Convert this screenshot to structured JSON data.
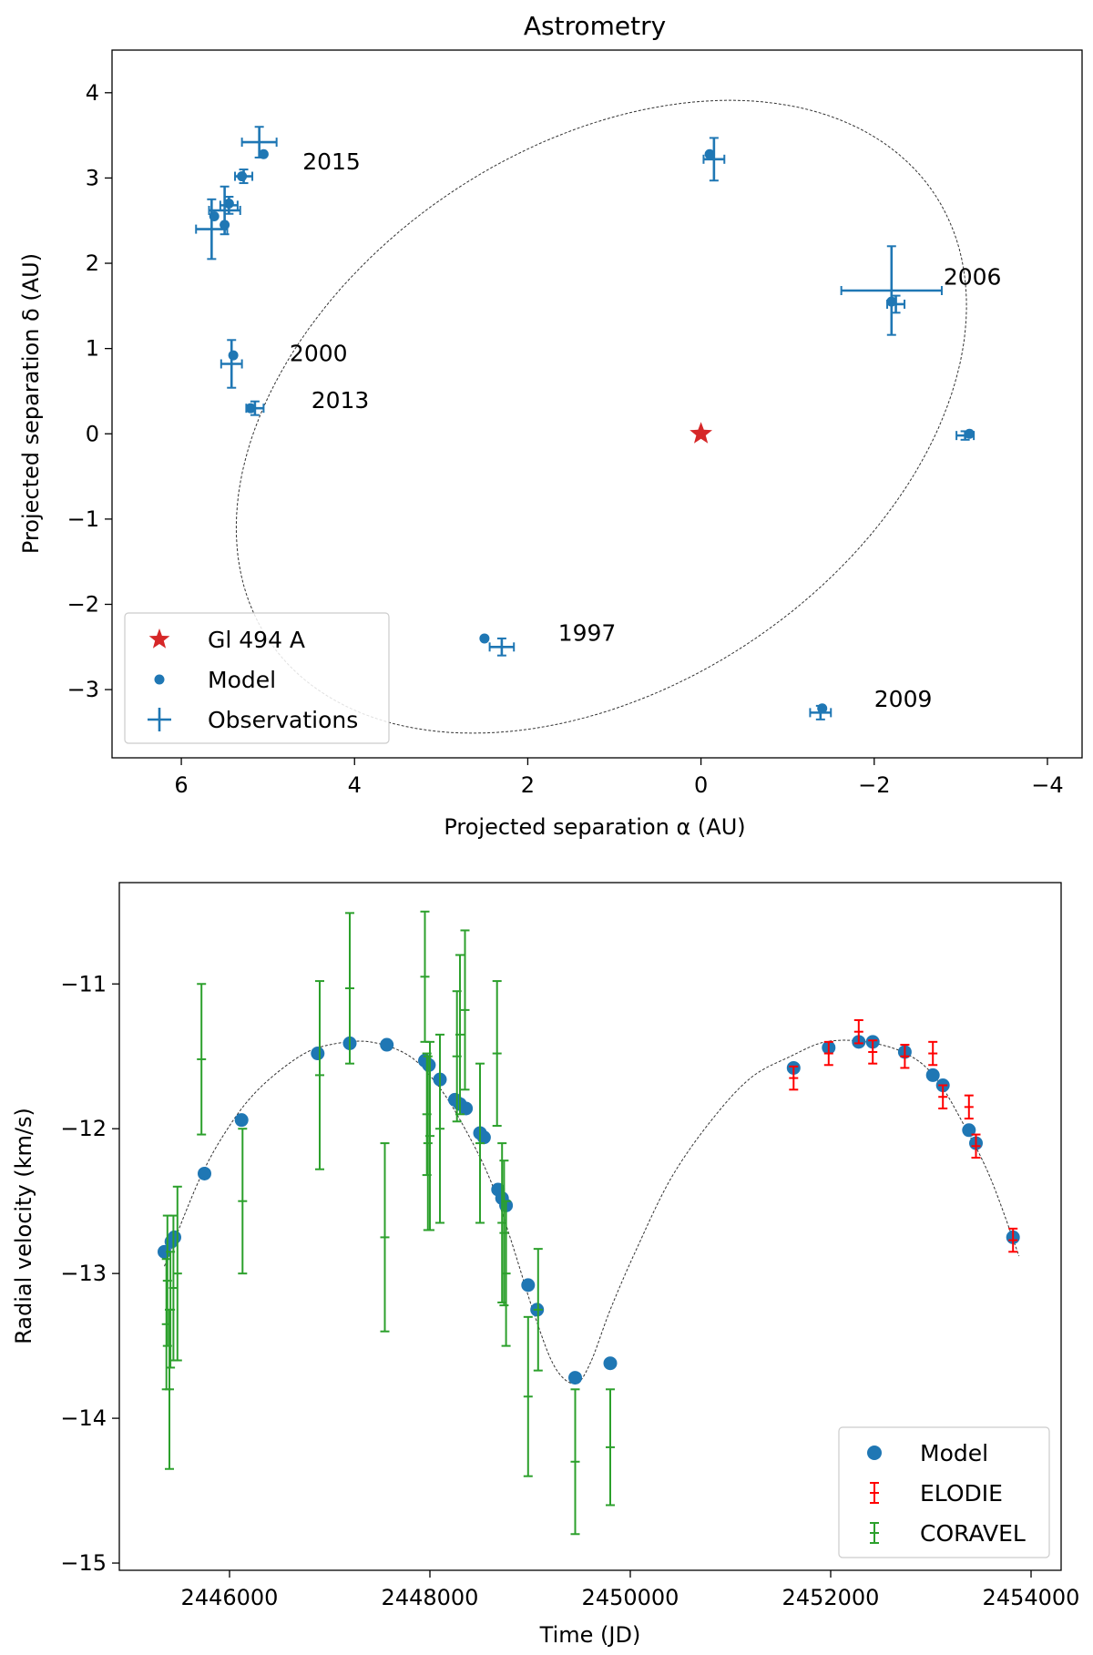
{
  "chart_data": [
    {
      "type": "scatter",
      "title": "Astrometry",
      "xlabel": "Projected separation α (AU)",
      "ylabel": "Projected separation δ (AU)",
      "xlim": [
        6.8,
        -4.4
      ],
      "ylim": [
        -3.8,
        4.5
      ],
      "xticks": [
        6,
        4,
        2,
        0,
        -2,
        -4
      ],
      "xtick_labels": [
        "6",
        "4",
        "2",
        "0",
        "−2",
        "−4"
      ],
      "yticks": [
        -3,
        -2,
        -1,
        0,
        1,
        2,
        3,
        4
      ],
      "ytick_labels": [
        "−3",
        "−2",
        "−1",
        "0",
        "1",
        "2",
        "3",
        "4"
      ],
      "star": {
        "name": "Gl 494 A",
        "x": 0.0,
        "y": 0.0,
        "color": "#d62728"
      },
      "orbit": {
        "center": [
          1.15,
          0.2
        ],
        "a": 4.65,
        "b": 3.15,
        "angle_deg": -35,
        "color": "#333333"
      },
      "model_points": [
        [
          5.05,
          3.28
        ],
        [
          5.3,
          3.02
        ],
        [
          5.45,
          2.7
        ],
        [
          5.5,
          2.45
        ],
        [
          5.62,
          2.55
        ],
        [
          5.4,
          0.92
        ],
        [
          5.2,
          0.3
        ],
        [
          2.5,
          -2.4
        ],
        [
          -1.4,
          -3.22
        ],
        [
          -3.1,
          0.0
        ],
        [
          -2.2,
          1.55
        ],
        [
          -0.1,
          3.28
        ]
      ],
      "observations": [
        {
          "x": 5.1,
          "y": 3.42,
          "xerr": 0.2,
          "yerr": 0.18
        },
        {
          "x": 5.28,
          "y": 3.02,
          "xerr": 0.1,
          "yerr": 0.08
        },
        {
          "x": 5.45,
          "y": 2.68,
          "xerr": 0.1,
          "yerr": 0.1
        },
        {
          "x": 5.5,
          "y": 2.62,
          "xerr": 0.18,
          "yerr": 0.28
        },
        {
          "x": 5.65,
          "y": 2.4,
          "xerr": 0.18,
          "yerr": 0.35
        },
        {
          "x": 5.42,
          "y": 0.82,
          "xerr": 0.12,
          "yerr": 0.28
        },
        {
          "x": 5.15,
          "y": 0.3,
          "xerr": 0.1,
          "yerr": 0.08
        },
        {
          "x": 2.3,
          "y": -2.5,
          "xerr": 0.14,
          "yerr": 0.1
        },
        {
          "x": -1.38,
          "y": -3.27,
          "xerr": 0.12,
          "yerr": 0.08
        },
        {
          "x": -3.05,
          "y": -0.02,
          "xerr": 0.1,
          "yerr": 0.05
        },
        {
          "x": -2.2,
          "y": 1.68,
          "xerr": 0.58,
          "yerr": 0.52
        },
        {
          "x": -2.25,
          "y": 1.52,
          "xerr": 0.1,
          "yerr": 0.1
        },
        {
          "x": -0.15,
          "y": 3.22,
          "xerr": 0.12,
          "yerr": 0.25
        }
      ],
      "annotations": [
        {
          "text": "2015",
          "x": 4.6,
          "y": 3.1
        },
        {
          "text": "2006",
          "x": -2.8,
          "y": 1.75
        },
        {
          "text": "2000",
          "x": 4.75,
          "y": 0.85
        },
        {
          "text": "2013",
          "x": 4.5,
          "y": 0.3
        },
        {
          "text": "1997",
          "x": 1.65,
          "y": -2.43
        },
        {
          "text": "2009",
          "x": -2.0,
          "y": -3.2
        }
      ],
      "legend": {
        "position": "lower-left",
        "entries": [
          {
            "label": "Gl 494 A",
            "marker": "star",
            "color": "#d62728"
          },
          {
            "label": "Model",
            "marker": "dot",
            "color": "#1f77b4"
          },
          {
            "label": "Observations",
            "marker": "cross",
            "color": "#1f77b4"
          }
        ]
      }
    },
    {
      "type": "scatter",
      "title": "",
      "xlabel": "Time (JD)",
      "ylabel": "Radial velocity (km/s)",
      "xlim": [
        2444900,
        2454300
      ],
      "ylim": [
        -15.05,
        -10.3
      ],
      "xticks": [
        2446000,
        2448000,
        2450000,
        2452000,
        2454000
      ],
      "xtick_labels": [
        "2446000",
        "2448000",
        "2450000",
        "2452000",
        "2454000"
      ],
      "yticks": [
        -15,
        -14,
        -13,
        -12,
        -11
      ],
      "ytick_labels": [
        "−15",
        "−14",
        "−13",
        "−12",
        "−11"
      ],
      "model_curve": {
        "x": [
          2445350,
          2445700,
          2446000,
          2446300,
          2446700,
          2447000,
          2447400,
          2447800,
          2448100,
          2448350,
          2448600,
          2448800,
          2449050,
          2449250,
          2449450,
          2449600,
          2449800,
          2450050,
          2450400,
          2450800,
          2451200,
          2451600,
          2451950,
          2452350,
          2452750,
          2453050,
          2453350,
          2453600,
          2453880
        ],
        "y": [
          -12.95,
          -12.35,
          -11.98,
          -11.72,
          -11.5,
          -11.42,
          -11.4,
          -11.5,
          -11.72,
          -12.0,
          -12.35,
          -12.75,
          -13.3,
          -13.65,
          -13.76,
          -13.62,
          -13.25,
          -12.85,
          -12.35,
          -11.95,
          -11.65,
          -11.5,
          -11.4,
          -11.4,
          -11.48,
          -11.65,
          -12.0,
          -12.35,
          -12.88
        ]
      },
      "model_points": [
        [
          2445350,
          -12.85
        ],
        [
          2445420,
          -12.78
        ],
        [
          2445450,
          -12.75
        ],
        [
          2445750,
          -12.31
        ],
        [
          2446120,
          -11.94
        ],
        [
          2446880,
          -11.48
        ],
        [
          2447200,
          -11.41
        ],
        [
          2447570,
          -11.42
        ],
        [
          2447950,
          -11.53
        ],
        [
          2447990,
          -11.56
        ],
        [
          2448100,
          -11.66
        ],
        [
          2448250,
          -11.8
        ],
        [
          2448300,
          -11.83
        ],
        [
          2448360,
          -11.86
        ],
        [
          2448500,
          -12.03
        ],
        [
          2448540,
          -12.06
        ],
        [
          2448680,
          -12.42
        ],
        [
          2448720,
          -12.48
        ],
        [
          2448760,
          -12.53
        ],
        [
          2448980,
          -13.08
        ],
        [
          2449070,
          -13.25
        ],
        [
          2449450,
          -13.72
        ],
        [
          2449800,
          -13.62
        ],
        [
          2451630,
          -11.58
        ],
        [
          2451980,
          -11.44
        ],
        [
          2452280,
          -11.4
        ],
        [
          2452420,
          -11.4
        ],
        [
          2452740,
          -11.47
        ],
        [
          2453020,
          -11.63
        ],
        [
          2453120,
          -11.7
        ],
        [
          2453380,
          -12.01
        ],
        [
          2453450,
          -12.1
        ],
        [
          2453820,
          -12.75
        ]
      ],
      "elodie": [
        [
          2451630,
          -11.65,
          0.08
        ],
        [
          2451980,
          -11.48,
          0.08
        ],
        [
          2452280,
          -11.33,
          0.08
        ],
        [
          2452420,
          -11.47,
          0.08
        ],
        [
          2452740,
          -11.5,
          0.08
        ],
        [
          2453020,
          -11.48,
          0.08
        ],
        [
          2453120,
          -11.78,
          0.08
        ],
        [
          2453380,
          -11.85,
          0.08
        ],
        [
          2453450,
          -12.12,
          0.08
        ],
        [
          2453820,
          -12.77,
          0.08
        ]
      ],
      "coravel": [
        [
          2445370,
          -13.35,
          0.45
        ],
        [
          2445380,
          -13.05,
          0.45
        ],
        [
          2445400,
          -13.8,
          0.55
        ],
        [
          2445410,
          -13.25,
          0.4
        ],
        [
          2445440,
          -13.1,
          0.5
        ],
        [
          2445480,
          -13.0,
          0.6
        ],
        [
          2445720,
          -11.52,
          0.52
        ],
        [
          2446130,
          -12.5,
          0.5
        ],
        [
          2446900,
          -11.63,
          0.65
        ],
        [
          2447200,
          -11.03,
          0.52
        ],
        [
          2447550,
          -12.75,
          0.65
        ],
        [
          2447950,
          -10.95,
          0.45
        ],
        [
          2447970,
          -11.9,
          0.42
        ],
        [
          2447980,
          -12.1,
          0.6
        ],
        [
          2448000,
          -12.05,
          0.65
        ],
        [
          2448100,
          -12.0,
          0.65
        ],
        [
          2448270,
          -11.5,
          0.45
        ],
        [
          2448300,
          -11.35,
          0.55
        ],
        [
          2448350,
          -11.18,
          0.55
        ],
        [
          2448500,
          -12.1,
          0.55
        ],
        [
          2448670,
          -11.48,
          0.5
        ],
        [
          2448720,
          -12.65,
          0.55
        ],
        [
          2448740,
          -12.72,
          0.5
        ],
        [
          2448760,
          -13.0,
          0.5
        ],
        [
          2448980,
          -13.85,
          0.55
        ],
        [
          2449080,
          -13.25,
          0.42
        ],
        [
          2449450,
          -14.3,
          0.5
        ],
        [
          2449800,
          -14.2,
          0.4
        ]
      ],
      "legend": {
        "position": "lower-right",
        "entries": [
          {
            "label": "Model",
            "marker": "dot",
            "color": "#1f77b4"
          },
          {
            "label": "ELODIE",
            "marker": "errorbar",
            "color": "#ff0000"
          },
          {
            "label": "CORAVEL",
            "marker": "errorbar",
            "color": "#2ca02c"
          }
        ]
      }
    }
  ]
}
